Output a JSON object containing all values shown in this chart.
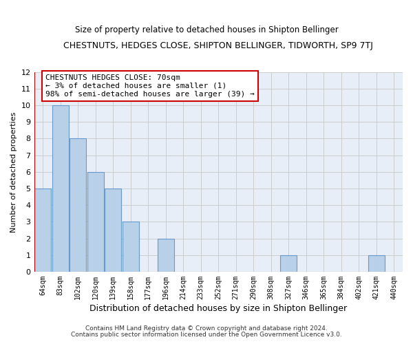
{
  "title": "CHESTNUTS, HEDGES CLOSE, SHIPTON BELLINGER, TIDWORTH, SP9 7TJ",
  "subtitle": "Size of property relative to detached houses in Shipton Bellinger",
  "xlabel": "Distribution of detached houses by size in Shipton Bellinger",
  "ylabel": "Number of detached properties",
  "bins": [
    "64sqm",
    "83sqm",
    "102sqm",
    "120sqm",
    "139sqm",
    "158sqm",
    "177sqm",
    "196sqm",
    "214sqm",
    "233sqm",
    "252sqm",
    "271sqm",
    "290sqm",
    "308sqm",
    "327sqm",
    "346sqm",
    "365sqm",
    "384sqm",
    "402sqm",
    "421sqm",
    "440sqm"
  ],
  "values": [
    5,
    10,
    8,
    6,
    5,
    3,
    0,
    2,
    0,
    0,
    0,
    0,
    0,
    0,
    1,
    0,
    0,
    0,
    0,
    1,
    0
  ],
  "bar_color": "#b8d0e8",
  "bar_edge_color": "#6699cc",
  "annotation_text": "CHESTNUTS HEDGES CLOSE: 70sqm\n← 3% of detached houses are smaller (1)\n98% of semi-detached houses are larger (39) →",
  "annotation_box_color": "#ffffff",
  "annotation_box_edge_color": "#cc0000",
  "ylim": [
    0,
    12
  ],
  "yticks": [
    0,
    1,
    2,
    3,
    4,
    5,
    6,
    7,
    8,
    9,
    10,
    11,
    12
  ],
  "grid_color": "#cccccc",
  "bg_color": "#ffffff",
  "plot_bg_color": "#e8eef8",
  "footer1": "Contains HM Land Registry data © Crown copyright and database right 2024.",
  "footer2": "Contains public sector information licensed under the Open Government Licence v3.0.",
  "highlight_line_color": "#cc0000"
}
